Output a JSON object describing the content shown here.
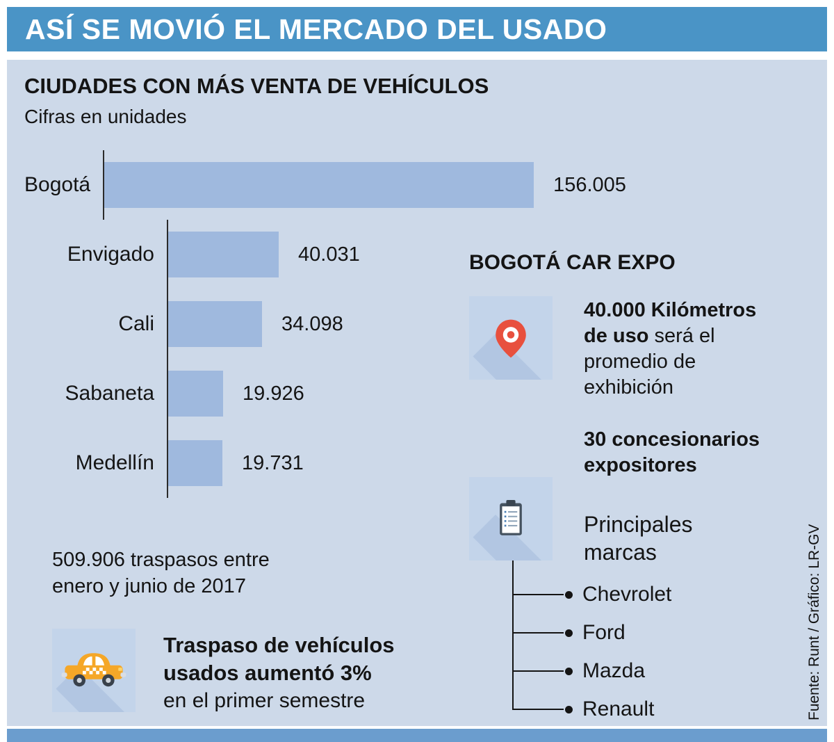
{
  "header": {
    "title": "ASÍ SE MOVIÓ EL MERCADO DEL USADO"
  },
  "section": {
    "title": "CIUDADES CON MÁS VENTA DE VEHÍCULOS",
    "subtitle": "Cifras en unidades"
  },
  "chart_data": {
    "type": "bar",
    "orientation": "horizontal",
    "title": "CIUDADES CON MÁS VENTA DE VEHÍCULOS",
    "subtitle": "Cifras en unidades",
    "units": "unidades",
    "categories": [
      "Bogotá",
      "Envigado",
      "Cali",
      "Sabaneta",
      "Medellín"
    ],
    "values": [
      156005,
      40031,
      34098,
      19926,
      19731
    ],
    "value_labels": [
      "156.005",
      "40.031",
      "34.098",
      "19.926",
      "19.731"
    ],
    "xlim": [
      0,
      160000
    ],
    "grid": false,
    "bar_color": "#9fb9de"
  },
  "expo": {
    "title": "BOGOTÁ CAR EXPO",
    "mileage_bold": "40.000 Kilómetros de uso",
    "mileage_rest": " será el promedio de exhibición",
    "dealers": "30 concesionarios expositores",
    "brands_title": "Principales marcas",
    "brands": [
      "Chevrolet",
      "Ford",
      "Mazda",
      "Renault"
    ]
  },
  "transfers": {
    "summary": "509.906 traspasos entre enero y junio de 2017",
    "note_bold": "Traspaso de vehículos usados aumentó 3%",
    "note_rest": "en el primer semestre"
  },
  "source": "Fuente: Runt / Gráfico: LR-GV",
  "colors": {
    "header_bar": "#4a94c6",
    "footer_bar": "#6b9dce",
    "background": "#cdd9e9",
    "bar": "#9fb9de",
    "icon_box": "#c3d4ea",
    "icon_shadow": "#b2c6e2",
    "pin_red": "#e8503e",
    "taxi_orange": "#f5a728",
    "text": "#141414"
  }
}
